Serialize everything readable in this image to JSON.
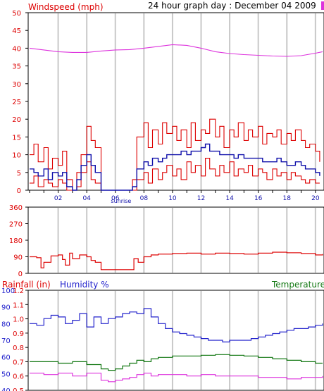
{
  "header": {
    "left_title": "Windspeed (mph)",
    "center_title": "24 hour graph day : December 04 2009"
  },
  "colors": {
    "wind_red": "#dd0000",
    "wind_avg_blue": "#1010aa",
    "magenta": "#dd33dd",
    "blue_text": "#2222cc",
    "green": "#117711",
    "grid": "#c8c8c8",
    "frame": "#000000"
  },
  "chart_data": [
    {
      "type": "line",
      "panel": "wind",
      "title": "Windspeed (mph)",
      "ylim": [
        0,
        50
      ],
      "y_ticks": [
        "0",
        "5",
        "10",
        "15",
        "20",
        "25",
        "30",
        "35",
        "40",
        "45",
        "50"
      ],
      "x_hour_range": [
        0,
        20.5
      ],
      "x_ticks": [
        {
          "hour": 2,
          "label": "02"
        },
        {
          "hour": 4,
          "label": "04"
        },
        {
          "hour": 6,
          "label": "06"
        },
        {
          "hour": 8,
          "label": "08"
        },
        {
          "hour": 10,
          "label": "10"
        },
        {
          "hour": 12,
          "label": "12"
        },
        {
          "hour": 14,
          "label": "14"
        },
        {
          "hour": 16,
          "label": "16"
        },
        {
          "hour": 18,
          "label": "18"
        },
        {
          "hour": 20,
          "label": "20"
        }
      ],
      "annotation": {
        "hour": 6.4,
        "label": "sunrise"
      },
      "series": [
        {
          "role": "magenta-upper",
          "color": "magenta",
          "x": [
            0,
            1,
            2,
            3,
            4,
            5,
            6,
            7,
            8,
            9,
            10,
            11,
            12,
            13,
            14,
            15,
            16,
            17,
            18,
            19,
            20,
            20.5
          ],
          "y": [
            40,
            39.5,
            39,
            38.8,
            38.8,
            39.2,
            39.5,
            39.6,
            40,
            40.5,
            41,
            40.8,
            40,
            39,
            38.5,
            38.2,
            38,
            37.8,
            37.7,
            37.9,
            38.6,
            39
          ]
        },
        {
          "role": "gust",
          "color": "wind_red",
          "x": [
            0,
            0.3,
            0.6,
            1,
            1.3,
            1.6,
            2,
            2.3,
            2.6,
            3,
            3.3,
            3.6,
            4,
            4.3,
            4.6,
            5,
            5.5,
            6,
            6.5,
            7,
            7.2,
            7.5,
            8,
            8.3,
            8.6,
            9,
            9.3,
            9.6,
            10,
            10.3,
            10.6,
            11,
            11.3,
            11.6,
            12,
            12.3,
            12.6,
            13,
            13.3,
            13.6,
            14,
            14.3,
            14.6,
            15,
            15.3,
            15.6,
            16,
            16.3,
            16.6,
            17,
            17.3,
            17.6,
            18,
            18.3,
            18.6,
            19,
            19.3,
            19.6,
            20,
            20.3
          ],
          "y": [
            10,
            13,
            8,
            12,
            6,
            9,
            7,
            11,
            3,
            0,
            5,
            10,
            18,
            14,
            12,
            0,
            0,
            0,
            0,
            0,
            3,
            15,
            19,
            12,
            17,
            13,
            19,
            16,
            18,
            14,
            17,
            12,
            19,
            14,
            17,
            16,
            20,
            15,
            18,
            12,
            17,
            15,
            19,
            14,
            17,
            15,
            18,
            13,
            16,
            15,
            17,
            13,
            16,
            14,
            17,
            14,
            12,
            13,
            11,
            8
          ]
        },
        {
          "role": "lull",
          "color": "wind_red",
          "x": [
            0,
            0.3,
            0.6,
            1,
            1.3,
            1.6,
            2,
            2.3,
            2.6,
            3,
            3.3,
            3.6,
            4,
            4.3,
            4.6,
            5,
            5.5,
            6,
            6.5,
            7,
            7.2,
            7.5,
            8,
            8.3,
            8.6,
            9,
            9.3,
            9.6,
            10,
            10.3,
            10.6,
            11,
            11.3,
            11.6,
            12,
            12.3,
            12.6,
            13,
            13.3,
            13.6,
            14,
            14.3,
            14.6,
            15,
            15.3,
            15.6,
            16,
            16.3,
            16.6,
            17,
            17.3,
            17.6,
            18,
            18.3,
            18.6,
            19,
            19.3,
            19.6,
            20,
            20.3
          ],
          "y": [
            2,
            4,
            1,
            3,
            2,
            1,
            3,
            2,
            0,
            0,
            1,
            5,
            8,
            3,
            2,
            0,
            0,
            0,
            0,
            0,
            0,
            3,
            5,
            2,
            6,
            3,
            5,
            7,
            4,
            6,
            3,
            8,
            5,
            7,
            4,
            9,
            6,
            4,
            7,
            5,
            8,
            4,
            6,
            5,
            7,
            4,
            6,
            5,
            3,
            6,
            4,
            5,
            3,
            5,
            4,
            3,
            2,
            3,
            2,
            2
          ]
        },
        {
          "role": "average",
          "color": "wind_avg_blue",
          "x": [
            0,
            0.3,
            0.6,
            1,
            1.3,
            1.6,
            2,
            2.3,
            2.6,
            3,
            3.3,
            3.6,
            4,
            4.3,
            4.6,
            5,
            5.5,
            6,
            6.5,
            7,
            7.2,
            7.5,
            8,
            8.3,
            8.6,
            9,
            9.3,
            9.6,
            10,
            10.3,
            10.6,
            11,
            11.3,
            11.6,
            12,
            12.3,
            12.6,
            13,
            13.3,
            13.6,
            14,
            14.3,
            14.6,
            15,
            15.3,
            15.6,
            16,
            16.3,
            16.6,
            17,
            17.3,
            17.6,
            18,
            18.3,
            18.6,
            19,
            19.3,
            19.6,
            20,
            20.3
          ],
          "y": [
            6,
            5,
            4,
            6,
            3,
            5,
            4,
            5,
            1,
            0,
            3,
            7,
            10,
            7,
            5,
            0,
            0,
            0,
            0,
            0,
            1,
            6,
            8,
            7,
            9,
            8,
            9,
            10,
            10,
            10,
            11,
            10,
            11,
            11,
            12,
            13,
            11,
            11,
            10,
            10,
            10,
            9,
            10,
            9,
            9,
            9,
            9,
            8,
            8,
            8,
            9,
            8,
            7,
            7,
            8,
            7,
            6,
            6,
            5,
            4
          ]
        }
      ]
    },
    {
      "type": "line",
      "panel": "direction",
      "ylim": [
        0,
        360
      ],
      "y_ticks": [
        "0",
        "90",
        "180",
        "270",
        "360"
      ],
      "x_hour_range": [
        0,
        20.5
      ],
      "series": [
        {
          "role": "direction",
          "color": "wind_red",
          "x": [
            0,
            0.5,
            0.8,
            1,
            1.5,
            2,
            2.3,
            2.5,
            2.8,
            3,
            3.5,
            4,
            4.3,
            4.6,
            5,
            5.5,
            6,
            6.5,
            7,
            7.3,
            7.6,
            8,
            8.5,
            9,
            10,
            11,
            12,
            13,
            14,
            15,
            16,
            17,
            18,
            19,
            20,
            20.5
          ],
          "y": [
            90,
            85,
            30,
            60,
            95,
            100,
            75,
            45,
            110,
            80,
            100,
            90,
            70,
            60,
            20,
            20,
            20,
            20,
            20,
            80,
            60,
            90,
            100,
            105,
            108,
            110,
            105,
            110,
            108,
            105,
            110,
            115,
            112,
            108,
            100,
            105
          ]
        }
      ]
    },
    {
      "type": "line",
      "panel": "rain-humidity-temperature",
      "left_titles": [
        "Rainfall (in)",
        "Humidity %"
      ],
      "right_title": "Temperature",
      "rain_ylim": [
        0.5,
        1.2
      ],
      "rain_ticks": [
        "0.5",
        "0.6",
        "0.7",
        "0.8",
        "0.9",
        "1.0",
        "1.1",
        "1.2"
      ],
      "humidity_ylim": [
        40,
        100
      ],
      "humidity_ticks": [
        "40",
        "50",
        "60",
        "70",
        "80",
        "90",
        "100"
      ],
      "x_hour_range": [
        0,
        20.5
      ],
      "series": [
        {
          "role": "humidity",
          "color": "blue_text",
          "x": [
            0,
            0.5,
            1,
            1.5,
            2,
            2.5,
            3,
            3.5,
            4,
            4.5,
            5,
            5.5,
            6,
            6.5,
            7,
            7.5,
            8,
            8.5,
            9,
            9.5,
            10,
            10.5,
            11,
            11.5,
            12,
            12.5,
            13,
            13.5,
            14,
            14.5,
            15,
            15.5,
            16,
            16.5,
            17,
            17.5,
            18,
            18.5,
            19,
            19.5,
            20,
            20.5
          ],
          "y": [
            80,
            79,
            83,
            85,
            84,
            80,
            82,
            86,
            78,
            84,
            80,
            83,
            84,
            86,
            87,
            86,
            89,
            84,
            80,
            77,
            75,
            74,
            73,
            72,
            71,
            70,
            70,
            69,
            70,
            70,
            70,
            71,
            72,
            73,
            74,
            75,
            76,
            77,
            77,
            78,
            79,
            80
          ]
        },
        {
          "role": "temperature",
          "color": "green",
          "x": [
            0,
            1,
            2,
            3,
            4,
            5,
            5.5,
            6,
            6.5,
            7,
            7.5,
            8,
            8.5,
            9,
            10,
            11,
            12,
            13,
            14,
            15,
            16,
            17,
            18,
            19,
            20,
            20.5
          ],
          "y": [
            0.7,
            0.7,
            0.69,
            0.7,
            0.68,
            0.65,
            0.64,
            0.65,
            0.67,
            0.69,
            0.71,
            0.7,
            0.72,
            0.73,
            0.74,
            0.74,
            0.745,
            0.75,
            0.745,
            0.74,
            0.73,
            0.72,
            0.71,
            0.7,
            0.69,
            0.69
          ]
        },
        {
          "role": "magenta-lower",
          "color": "magenta",
          "x": [
            0,
            1,
            2,
            3,
            4,
            5,
            5.5,
            6,
            6.5,
            7,
            7.5,
            8,
            8.5,
            9,
            10,
            11,
            12,
            13,
            14,
            15,
            16,
            17,
            18,
            19,
            20,
            20.5
          ],
          "y": [
            0.62,
            0.61,
            0.62,
            0.6,
            0.62,
            0.57,
            0.56,
            0.57,
            0.58,
            0.59,
            0.61,
            0.62,
            0.6,
            0.61,
            0.61,
            0.6,
            0.61,
            0.6,
            0.6,
            0.6,
            0.59,
            0.59,
            0.58,
            0.59,
            0.59,
            0.6
          ]
        }
      ]
    }
  ]
}
